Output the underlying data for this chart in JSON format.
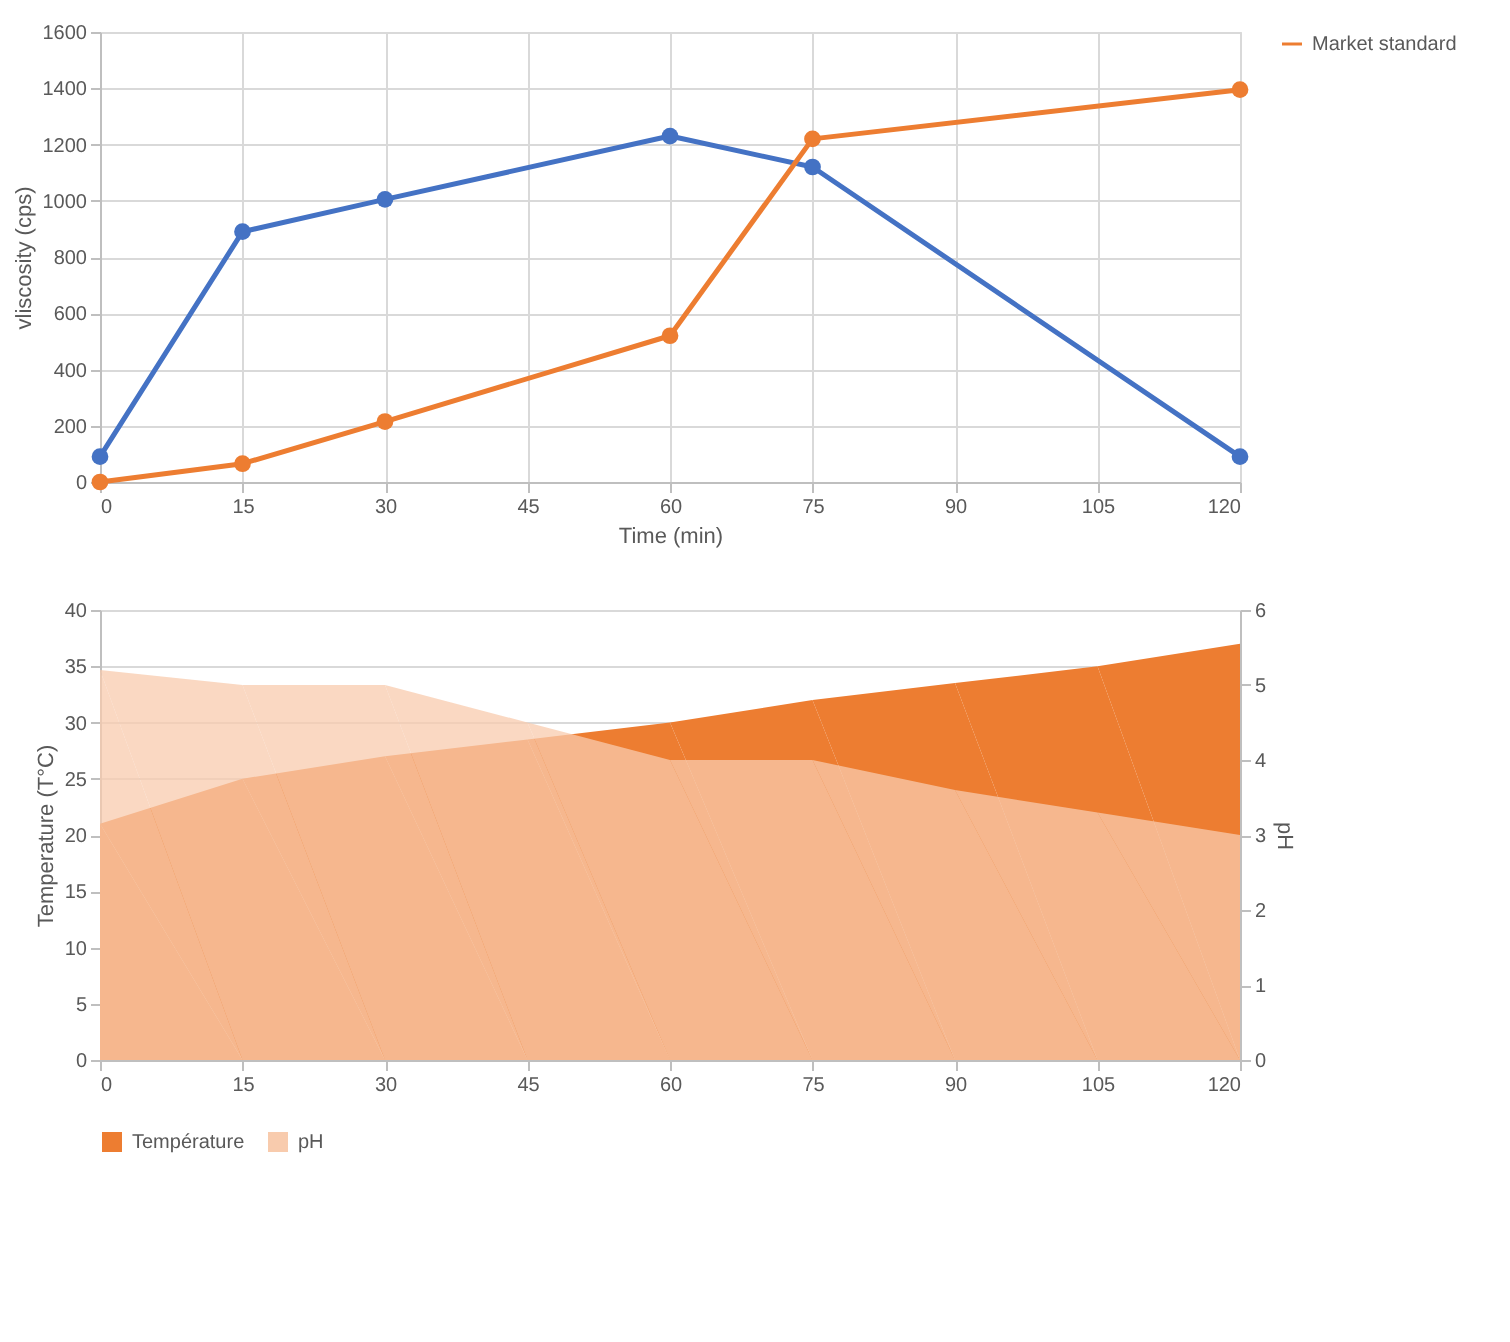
{
  "chart_data": [
    {
      "type": "line",
      "xlabel": "Time (min)",
      "ylabel": "vliscosity (cps)",
      "x": [
        0,
        15,
        30,
        60,
        75,
        120
      ],
      "series": [
        {
          "color": "#4472c4",
          "values": [
            90,
            890,
            1005,
            1230,
            1120,
            90
          ]
        },
        {
          "name": "Market standard",
          "color": "#ed7d31",
          "values": [
            0,
            65,
            215,
            520,
            1220,
            1395
          ]
        }
      ],
      "xlim": [
        0,
        120
      ],
      "xticks": [
        0,
        15,
        30,
        45,
        60,
        75,
        90,
        105,
        120
      ],
      "ylim": [
        0,
        1600
      ],
      "yticks": [
        0,
        200,
        400,
        600,
        800,
        1000,
        1200,
        1400,
        1600
      ],
      "grid": true,
      "legend": "right",
      "marker": "circle",
      "line_style": "solid"
    },
    {
      "type": "area",
      "ylabel": "Temperature (T°C)",
      "y2label": "pH",
      "x": [
        0,
        15,
        30,
        45,
        60,
        75,
        90,
        105,
        120
      ],
      "series": [
        {
          "name": "Température",
          "color": "#ed7d31",
          "values": [
            21,
            25,
            27,
            28.5,
            30,
            32,
            33.5,
            35,
            37
          ]
        },
        {
          "name": "pH",
          "color": "#f8cbad",
          "axis": "y2",
          "values": [
            5.2,
            5,
            5,
            4.5,
            4,
            4,
            3.6,
            3.3,
            3.0
          ]
        }
      ],
      "xlim": [
        0,
        120
      ],
      "xticks": [
        0,
        15,
        30,
        45,
        60,
        75,
        90,
        105,
        120
      ],
      "ylim": [
        0,
        40
      ],
      "yticks": [
        0,
        5,
        10,
        15,
        20,
        25,
        30,
        35,
        40
      ],
      "y2lim": [
        0,
        6
      ],
      "y2ticks": [
        0,
        1,
        2,
        3,
        4,
        5,
        6
      ],
      "grid": "y",
      "legend": "bottom"
    }
  ]
}
